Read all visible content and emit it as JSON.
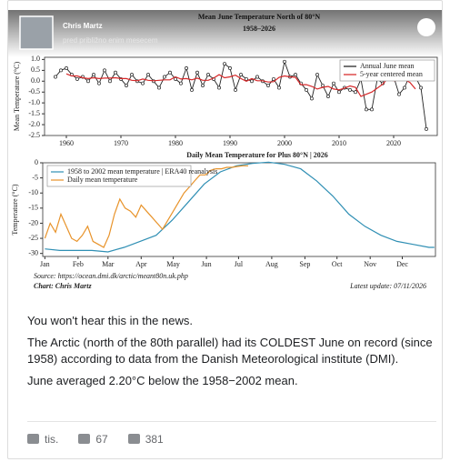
{
  "header": {
    "author": "Chris Martz",
    "time": "pred približno enim mesecem"
  },
  "chart_data": [
    {
      "type": "line",
      "title": "Mean June Temperature North of 80°N",
      "subtitle": "1958–2026",
      "y_label": "Mean Temperature (°C)",
      "x": [
        1958,
        1959,
        1960,
        1961,
        1962,
        1963,
        1964,
        1965,
        1966,
        1967,
        1968,
        1969,
        1970,
        1971,
        1972,
        1973,
        1974,
        1975,
        1976,
        1977,
        1978,
        1979,
        1980,
        1981,
        1982,
        1983,
        1984,
        1985,
        1986,
        1987,
        1988,
        1989,
        1990,
        1991,
        1992,
        1993,
        1994,
        1995,
        1996,
        1997,
        1998,
        1999,
        2000,
        2001,
        2002,
        2003,
        2004,
        2005,
        2006,
        2007,
        2008,
        2009,
        2010,
        2011,
        2012,
        2013,
        2014,
        2015,
        2016,
        2017,
        2018,
        2019,
        2020,
        2021,
        2022,
        2023,
        2024,
        2025,
        2026
      ],
      "series": [
        {
          "name": "Annual June mean",
          "color": "#222222",
          "markers": true,
          "values": [
            0.2,
            0.5,
            0.6,
            0.3,
            0.1,
            0.2,
            0.0,
            0.3,
            -0.1,
            0.5,
            0.0,
            0.4,
            0.1,
            -0.2,
            0.3,
            0.0,
            -0.1,
            0.3,
            0.0,
            -0.3,
            0.2,
            0.4,
            0.1,
            -0.1,
            0.6,
            -0.4,
            0.4,
            -0.2,
            0.3,
            0.1,
            -0.3,
            0.8,
            0.6,
            -0.4,
            0.3,
            0.1,
            0.0,
            0.2,
            0.0,
            -0.2,
            0.1,
            -0.3,
            0.9,
            0.2,
            0.3,
            -0.1,
            -0.4,
            -0.8,
            0.3,
            -0.2,
            -0.7,
            -0.1,
            -0.5,
            -0.3,
            -0.4,
            -0.5,
            0.1,
            -1.3,
            -1.3,
            0.1,
            -0.1,
            0.6,
            0.2,
            -0.6,
            -0.3,
            0.3,
            0.2,
            -0.3,
            -2.2
          ]
        },
        {
          "name": "5-year centered mean",
          "color": "#d62728",
          "markers": false,
          "values": [
            null,
            null,
            0.34,
            0.24,
            0.24,
            0.16,
            0.12,
            0.16,
            0.12,
            0.14,
            0.14,
            0.16,
            0.12,
            0.12,
            0.04,
            0.02,
            0.1,
            0.04,
            0.02,
            0.04,
            0.06,
            0.06,
            0.2,
            0.1,
            0.12,
            0.06,
            0.14,
            0.04,
            0.04,
            0.14,
            0.3,
            0.16,
            0.2,
            0.28,
            0.12,
            0.0,
            0.12,
            0.02,
            0.02,
            -0.04,
            -0.02,
            0.18,
            0.24,
            0.2,
            0.18,
            -0.16,
            -0.16,
            -0.24,
            -0.36,
            -0.28,
            -0.24,
            -0.36,
            -0.4,
            -0.32,
            -0.22,
            -0.28,
            -0.7,
            -0.6,
            -0.5,
            -0.32,
            -0.14,
            0.16,
            0.02,
            0.04,
            0.08,
            -0.06,
            -0.36,
            null,
            null
          ]
        }
      ],
      "xlim": [
        1956,
        2028
      ],
      "ylim": [
        -2.5,
        1.1
      ],
      "xticks": [
        1960,
        1970,
        1980,
        1990,
        2000,
        2010,
        2020
      ],
      "yticks": [
        {
          "value": 1.0,
          "label": "1.0"
        },
        0.5,
        {
          "value": 0.0,
          "label": "0.0"
        },
        -0.5,
        {
          "value": -1.0,
          "label": "-1.0"
        },
        -1.5,
        {
          "value": -2.0,
          "label": "-2.0"
        },
        -2.5
      ],
      "legend": "upper right"
    },
    {
      "type": "line",
      "title": "Daily Mean Temperature for Plus 80°N | 2026",
      "y_label": "Temperature (°C)",
      "series": [
        {
          "name": "1958 to 2002 mean temperature | ERA40 reanalysis",
          "color": "#2f8fb4",
          "x": [
            1,
            15,
            30,
            45,
            60,
            75,
            90,
            105,
            120,
            135,
            150,
            165,
            180,
            195,
            210,
            225,
            240,
            255,
            270,
            285,
            300,
            315,
            330,
            345,
            360,
            365
          ],
          "values": [
            -28.5,
            -29,
            -29,
            -29,
            -29.5,
            -28,
            -26,
            -24,
            -19,
            -13,
            -7,
            -3,
            -1,
            -0.2,
            0.2,
            -0.5,
            -2,
            -6,
            -11,
            -17,
            -21,
            -24,
            -26,
            -27,
            -28,
            -28
          ]
        },
        {
          "name": "Daily mean temperature",
          "color": "#e8932a",
          "x": [
            1,
            6,
            11,
            16,
            21,
            26,
            31,
            36,
            41,
            46,
            51,
            56,
            61,
            66,
            71,
            76,
            81,
            86,
            91,
            96,
            101,
            106,
            111,
            116,
            121,
            126,
            131,
            136,
            141,
            146,
            151,
            156,
            161,
            166,
            171,
            176,
            181,
            186,
            191
          ],
          "values": [
            -25,
            -20,
            -23,
            -17,
            -21,
            -25,
            -26,
            -24,
            -21,
            -26,
            -27,
            -28,
            -24,
            -17,
            -12,
            -15,
            -16,
            -18,
            -14,
            -16,
            -18,
            -20,
            -22,
            -19,
            -16,
            -13,
            -10,
            -8,
            -6,
            -4,
            -4,
            -2.5,
            -2,
            -2,
            -1.5,
            -1.5,
            -1.2,
            -1,
            -1
          ]
        }
      ],
      "xlim": [
        -1,
        366
      ],
      "ylim": [
        -31,
        0
      ],
      "xticks": [
        {
          "value": 1,
          "label": "Jan"
        },
        {
          "value": 32,
          "label": "Feb"
        },
        {
          "value": 60,
          "label": "Mar"
        },
        {
          "value": 91,
          "label": "Apr"
        },
        {
          "value": 121,
          "label": "May"
        },
        {
          "value": 152,
          "label": "Jun"
        },
        {
          "value": 182,
          "label": "Jul"
        },
        {
          "value": 213,
          "label": "Aug"
        },
        {
          "value": 244,
          "label": "Sep"
        },
        {
          "value": 274,
          "label": "Oct"
        },
        {
          "value": 305,
          "label": "Nov"
        },
        {
          "value": 335,
          "label": "Dec"
        }
      ],
      "yticks": [
        0,
        -5,
        -10,
        -15,
        -20,
        -25,
        -30
      ],
      "legend": "upper left",
      "source": "Source: https://ocean.dmi.dk/arctic/meant80n.uk.php",
      "credit": "Chart: Chris Martz",
      "update": "Latest update: 07/11/2026"
    }
  ],
  "body": {
    "paragraphs": [
      "You won't hear this in the news.",
      "The Arctic (north of the 80th parallel) had its COLDEST June on record (since 1958) according to data from the Danish Meteorological institute (DMI).",
      "June averaged 2.20°C below the 1958−2002 mean."
    ]
  },
  "footer": {
    "like": "tis.",
    "comments": "67",
    "shares": "381"
  }
}
